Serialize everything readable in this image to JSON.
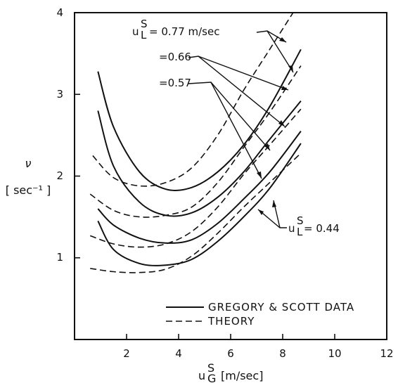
{
  "chart_data": {
    "type": "line",
    "xlim": [
      0,
      12
    ],
    "ylim": [
      0,
      4
    ],
    "x_ticks": [
      "2",
      "4",
      "6",
      "8",
      "10",
      "12"
    ],
    "y_ticks": [
      "1",
      "2",
      "3",
      "4"
    ],
    "ylabel_symbol": "ν",
    "ylabel_units": "[ sec⁻¹ ]",
    "xlabel_symbol": "u",
    "xlabel_sup": "S",
    "xlabel_sub": "G",
    "xlabel_units": "[m/sec]",
    "legend": {
      "position": "bottom-right",
      "entries": [
        {
          "label": "GREGORY & SCOTT DATA",
          "style": "solid"
        },
        {
          "label": "THEORY",
          "style": "dashed"
        }
      ]
    },
    "annotations": {
      "a077": "= 0.77 m/sec",
      "a066": "=0.66",
      "a057": "=0.57",
      "a044": "= 0.44",
      "u": "u",
      "sup": "S",
      "sub": "L"
    },
    "series": [
      {
        "group": "0.77",
        "style": "solid",
        "x": [
          0.9,
          1.5,
          2.5,
          3.5,
          4.5,
          5.5,
          6.5,
          7.5,
          8.7
        ],
        "y": [
          3.28,
          2.6,
          2.05,
          1.84,
          1.86,
          2.05,
          2.38,
          2.85,
          3.55
        ]
      },
      {
        "group": "0.77",
        "style": "dashed",
        "x": [
          0.7,
          1.5,
          2.5,
          3.5,
          4.5,
          5.5,
          6.5,
          7.5,
          8.4
        ],
        "y": [
          2.25,
          1.98,
          1.88,
          1.92,
          2.1,
          2.5,
          3.05,
          3.55,
          4.0
        ]
      },
      {
        "group": "0.66",
        "style": "solid",
        "x": [
          0.9,
          1.5,
          2.5,
          3.5,
          4.5,
          5.5,
          6.5,
          7.5,
          8.7
        ],
        "y": [
          2.8,
          2.12,
          1.68,
          1.52,
          1.55,
          1.74,
          2.05,
          2.45,
          2.92
        ]
      },
      {
        "group": "0.66",
        "style": "dashed",
        "x": [
          0.6,
          1.5,
          2.5,
          3.5,
          4.5,
          5.5,
          6.5,
          7.5,
          8.7
        ],
        "y": [
          1.78,
          1.58,
          1.5,
          1.52,
          1.62,
          1.92,
          2.35,
          2.78,
          3.35
        ]
      },
      {
        "group": "0.57",
        "style": "solid",
        "x": [
          0.9,
          1.5,
          2.5,
          3.5,
          4.5,
          5.5,
          6.5,
          7.5,
          8.7
        ],
        "y": [
          1.6,
          1.4,
          1.24,
          1.18,
          1.22,
          1.42,
          1.72,
          2.05,
          2.55
        ]
      },
      {
        "group": "0.57",
        "style": "dashed",
        "x": [
          0.6,
          1.5,
          2.5,
          3.5,
          4.5,
          5.5,
          6.5,
          7.5,
          8.7
        ],
        "y": [
          1.27,
          1.17,
          1.13,
          1.17,
          1.32,
          1.62,
          2.02,
          2.38,
          2.82
        ]
      },
      {
        "group": "0.44",
        "style": "solid",
        "x": [
          0.9,
          1.5,
          2.5,
          3.5,
          4.5,
          5.5,
          6.5,
          7.5,
          8.7
        ],
        "y": [
          1.45,
          1.1,
          0.93,
          0.91,
          0.98,
          1.2,
          1.5,
          1.85,
          2.4
        ]
      },
      {
        "group": "0.44",
        "style": "dashed",
        "x": [
          0.6,
          1.5,
          2.5,
          3.5,
          4.5,
          5.5,
          6.5,
          7.5,
          8.7
        ],
        "y": [
          0.87,
          0.83,
          0.82,
          0.86,
          1.02,
          1.3,
          1.62,
          1.92,
          2.28
        ]
      }
    ]
  }
}
